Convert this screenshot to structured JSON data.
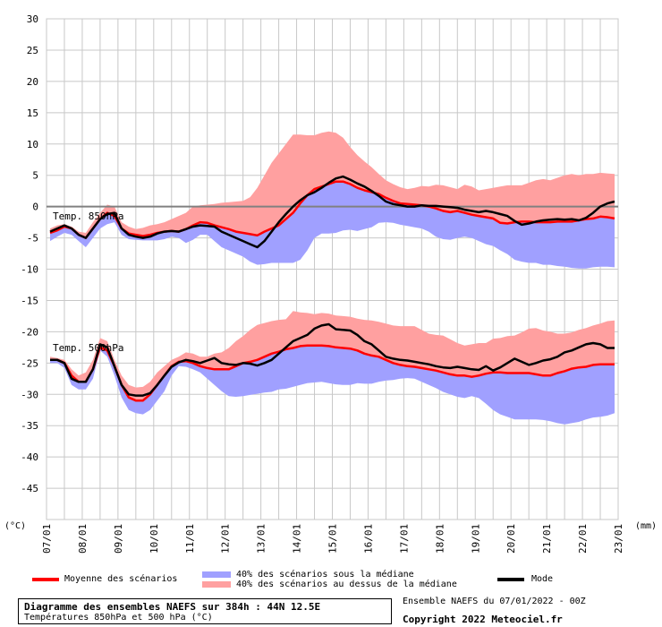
{
  "chart_data": {
    "type": "area",
    "y_unit_label": "(°C)",
    "y2_unit_label": "(mm)",
    "ylim": [
      -50,
      30
    ],
    "y_ticks": [
      30,
      25,
      20,
      15,
      10,
      5,
      0,
      -5,
      -10,
      -15,
      -20,
      -25,
      -30,
      -35,
      -40,
      -45
    ],
    "grid": true,
    "x_tick_labels": [
      "07/01",
      "08/01",
      "09/01",
      "10/01",
      "11/01",
      "12/01",
      "13/01",
      "14/01",
      "15/01",
      "16/01",
      "17/01",
      "18/01",
      "19/01",
      "20/01",
      "21/01",
      "22/01",
      "23/01"
    ],
    "x_day_range": [
      0,
      16
    ],
    "panels": [
      {
        "label": "Temp. 850hPa",
        "x": [
          0.1,
          0.3,
          0.5,
          0.7,
          0.9,
          1.1,
          1.3,
          1.5,
          1.7,
          1.9,
          2.1,
          2.3,
          2.5,
          2.7,
          2.9,
          3.1,
          3.3,
          3.5,
          3.7,
          3.9,
          4.1,
          4.3,
          4.5,
          4.7,
          4.9,
          5.1,
          5.3,
          5.5,
          5.7,
          5.9,
          6.1,
          6.3,
          6.5,
          6.7,
          6.9,
          7.1,
          7.3,
          7.5,
          7.7,
          7.9,
          8.1,
          8.3,
          8.5,
          8.7,
          8.9,
          9.1,
          9.3,
          9.5,
          9.7,
          9.9,
          10.1,
          10.3,
          10.5,
          10.7,
          10.9,
          11.1,
          11.3,
          11.5,
          11.7,
          11.9,
          12.1,
          12.3,
          12.5,
          12.7,
          12.9,
          13.1,
          13.3,
          13.5,
          13.7,
          13.9,
          14.1,
          14.3,
          14.5,
          14.7,
          14.9,
          15.1,
          15.3,
          15.5,
          15.7,
          15.9
        ],
        "mean": [
          -4.2,
          -3.8,
          -3.2,
          -3.5,
          -4.5,
          -5.0,
          -3.5,
          -2.0,
          -1.0,
          -1.5,
          -3.5,
          -4.3,
          -4.5,
          -4.7,
          -4.5,
          -4.2,
          -4.0,
          -3.9,
          -4.0,
          -3.6,
          -3.0,
          -2.5,
          -2.6,
          -3.0,
          -3.3,
          -3.6,
          -4.0,
          -4.2,
          -4.4,
          -4.6,
          -4.0,
          -3.5,
          -3.0,
          -2.0,
          -1.0,
          0.5,
          1.8,
          2.8,
          3.2,
          3.6,
          4.0,
          4.0,
          3.6,
          3.0,
          2.6,
          2.3,
          2.0,
          1.4,
          0.9,
          0.5,
          0.4,
          0.3,
          0.2,
          0.0,
          -0.3,
          -0.7,
          -0.9,
          -0.7,
          -1.0,
          -1.3,
          -1.5,
          -1.7,
          -1.9,
          -2.6,
          -2.7,
          -2.5,
          -2.4,
          -2.4,
          -2.5,
          -2.5,
          -2.5,
          -2.4,
          -2.4,
          -2.4,
          -2.2,
          -2.0,
          -1.9,
          -1.6,
          -1.7,
          -1.9
        ],
        "mode": [
          -4.0,
          -3.5,
          -3.0,
          -3.5,
          -4.5,
          -5.0,
          -3.5,
          -2.0,
          -1.2,
          -1.0,
          -3.5,
          -4.5,
          -4.8,
          -5.0,
          -4.8,
          -4.3,
          -4.0,
          -3.9,
          -4.0,
          -3.6,
          -3.2,
          -3.0,
          -3.1,
          -3.2,
          -4.0,
          -4.5,
          -5.0,
          -5.5,
          -6.0,
          -6.5,
          -5.5,
          -4.0,
          -2.5,
          -1.2,
          0.0,
          1.0,
          1.8,
          2.3,
          3.0,
          3.8,
          4.5,
          4.8,
          4.3,
          3.7,
          3.2,
          2.5,
          1.7,
          0.8,
          0.4,
          0.2,
          0.0,
          0.0,
          0.2,
          0.1,
          0.1,
          0.0,
          -0.1,
          -0.2,
          -0.5,
          -0.7,
          -0.9,
          -0.7,
          -0.9,
          -1.2,
          -1.5,
          -2.3,
          -2.9,
          -2.7,
          -2.4,
          -2.2,
          -2.1,
          -2.0,
          -2.1,
          -2.0,
          -2.2,
          -1.8,
          -1.0,
          0.0,
          0.5,
          0.8
        ],
        "upper": [
          -3.5,
          -3.0,
          -2.8,
          -3.2,
          -4.0,
          -4.2,
          -2.5,
          -1.0,
          0.3,
          0.0,
          -2.5,
          -3.2,
          -3.6,
          -3.4,
          -3.0,
          -2.8,
          -2.5,
          -2.0,
          -1.5,
          -1.0,
          0.0,
          0.2,
          0.3,
          0.4,
          0.6,
          0.7,
          0.8,
          0.9,
          1.5,
          3.0,
          5.0,
          7.0,
          8.5,
          10.0,
          11.5,
          11.5,
          11.4,
          11.4,
          11.8,
          12.0,
          11.8,
          11.0,
          9.5,
          8.2,
          7.2,
          6.3,
          5.2,
          4.2,
          3.6,
          3.1,
          2.8,
          3.0,
          3.3,
          3.2,
          3.5,
          3.4,
          3.1,
          2.8,
          3.5,
          3.2,
          2.6,
          2.8,
          3.0,
          3.2,
          3.4,
          3.4,
          3.4,
          3.8,
          4.2,
          4.4,
          4.2,
          4.6,
          5.0,
          5.2,
          5.0,
          5.2,
          5.2,
          5.4,
          5.3,
          5.2
        ],
        "lower": [
          -5.5,
          -4.8,
          -4.2,
          -4.5,
          -5.5,
          -6.5,
          -5.0,
          -3.5,
          -2.8,
          -2.5,
          -4.5,
          -5.2,
          -5.3,
          -5.4,
          -5.4,
          -5.4,
          -5.2,
          -4.8,
          -5.0,
          -5.8,
          -5.3,
          -4.5,
          -4.5,
          -5.5,
          -6.5,
          -7.0,
          -7.5,
          -8.0,
          -8.8,
          -9.3,
          -9.2,
          -9.0,
          -9.0,
          -9.0,
          -9.0,
          -8.5,
          -7.0,
          -5.0,
          -4.3,
          -4.3,
          -4.2,
          -3.8,
          -3.7,
          -3.9,
          -3.6,
          -3.3,
          -2.6,
          -2.5,
          -2.6,
          -2.9,
          -3.1,
          -3.3,
          -3.5,
          -4.0,
          -4.8,
          -5.2,
          -5.3,
          -5.0,
          -4.8,
          -5.0,
          -5.5,
          -6.0,
          -6.3,
          -7.0,
          -7.6,
          -8.5,
          -8.8,
          -9.0,
          -9.0,
          -9.3,
          -9.3,
          -9.5,
          -9.6,
          -9.8,
          -9.9,
          -9.9,
          -9.7,
          -9.6,
          -9.6,
          -9.7
        ]
      },
      {
        "label": "Temp. 500hPa",
        "x": [
          0.1,
          0.3,
          0.5,
          0.7,
          0.9,
          1.1,
          1.3,
          1.5,
          1.7,
          1.9,
          2.1,
          2.3,
          2.5,
          2.7,
          2.9,
          3.1,
          3.3,
          3.5,
          3.7,
          3.9,
          4.1,
          4.3,
          4.5,
          4.7,
          4.9,
          5.1,
          5.3,
          5.5,
          5.7,
          5.9,
          6.1,
          6.3,
          6.5,
          6.7,
          6.9,
          7.1,
          7.3,
          7.5,
          7.7,
          7.9,
          8.1,
          8.3,
          8.5,
          8.7,
          8.9,
          9.1,
          9.3,
          9.5,
          9.7,
          9.9,
          10.1,
          10.3,
          10.5,
          10.7,
          10.9,
          11.1,
          11.3,
          11.5,
          11.7,
          11.9,
          12.1,
          12.3,
          12.5,
          12.7,
          12.9,
          13.1,
          13.3,
          13.5,
          13.7,
          13.9,
          14.1,
          14.3,
          14.5,
          14.7,
          14.9,
          15.1,
          15.3,
          15.5,
          15.7,
          15.9
        ],
        "mean": [
          -24.5,
          -24.5,
          -25.0,
          -27.0,
          -28.0,
          -28.0,
          -26.0,
          -22.5,
          -23.0,
          -25.5,
          -28.5,
          -30.5,
          -31.0,
          -31.0,
          -30.0,
          -28.5,
          -27.0,
          -25.5,
          -24.8,
          -24.7,
          -25.0,
          -25.5,
          -25.8,
          -26.0,
          -26.0,
          -26.0,
          -25.5,
          -25.0,
          -24.8,
          -24.5,
          -24.0,
          -23.5,
          -23.2,
          -22.8,
          -22.6,
          -22.3,
          -22.2,
          -22.2,
          -22.2,
          -22.3,
          -22.5,
          -22.6,
          -22.7,
          -23.0,
          -23.5,
          -23.8,
          -24.0,
          -24.5,
          -25.0,
          -25.3,
          -25.5,
          -25.6,
          -25.8,
          -26.0,
          -26.2,
          -26.5,
          -26.8,
          -27.0,
          -27.0,
          -27.2,
          -27.0,
          -26.7,
          -26.5,
          -26.5,
          -26.6,
          -26.6,
          -26.6,
          -26.6,
          -26.8,
          -27.0,
          -27.0,
          -26.6,
          -26.3,
          -25.9,
          -25.7,
          -25.6,
          -25.3,
          -25.2,
          -25.2,
          -25.2
        ],
        "mode": [
          -24.5,
          -24.5,
          -25.0,
          -27.5,
          -28.0,
          -28.0,
          -26.0,
          -22.0,
          -22.5,
          -25.5,
          -28.5,
          -30.0,
          -30.2,
          -30.2,
          -29.8,
          -28.5,
          -27.0,
          -25.6,
          -24.9,
          -24.5,
          -24.7,
          -25.0,
          -24.6,
          -24.2,
          -25.0,
          -25.2,
          -25.3,
          -25.0,
          -25.1,
          -25.4,
          -25.0,
          -24.5,
          -23.5,
          -22.5,
          -21.5,
          -21.0,
          -20.5,
          -19.5,
          -19.0,
          -18.8,
          -19.6,
          -19.7,
          -19.8,
          -20.5,
          -21.5,
          -22.0,
          -23.0,
          -24.0,
          -24.3,
          -24.5,
          -24.6,
          -24.8,
          -25.0,
          -25.2,
          -25.5,
          -25.7,
          -25.8,
          -25.6,
          -25.8,
          -26.0,
          -26.1,
          -25.5,
          -26.2,
          -25.7,
          -25.0,
          -24.3,
          -24.8,
          -25.3,
          -25.0,
          -24.6,
          -24.4,
          -24.0,
          -23.3,
          -23.0,
          -22.5,
          -22.0,
          -21.8,
          -22.0,
          -22.6,
          -22.6
        ],
        "upper": [
          -24.0,
          -24.2,
          -24.5,
          -26.0,
          -27.0,
          -26.5,
          -24.5,
          -21.0,
          -21.5,
          -24.5,
          -27.0,
          -28.5,
          -28.9,
          -28.8,
          -28.0,
          -26.5,
          -25.5,
          -24.5,
          -24.0,
          -23.3,
          -23.5,
          -24.0,
          -24.0,
          -23.5,
          -23.3,
          -22.6,
          -21.5,
          -20.7,
          -19.7,
          -18.9,
          -18.6,
          -18.3,
          -18.1,
          -18.0,
          -16.7,
          -16.9,
          -17.0,
          -17.2,
          -17.0,
          -17.1,
          -17.4,
          -17.5,
          -17.6,
          -17.9,
          -18.1,
          -18.2,
          -18.4,
          -18.7,
          -19.0,
          -19.1,
          -19.1,
          -19.1,
          -19.7,
          -20.3,
          -20.5,
          -20.6,
          -21.2,
          -21.8,
          -22.2,
          -22.0,
          -21.8,
          -21.8,
          -21.1,
          -21.0,
          -20.7,
          -20.6,
          -20.1,
          -19.5,
          -19.4,
          -19.8,
          -20.0,
          -20.3,
          -20.3,
          -20.1,
          -19.7,
          -19.4,
          -19.0,
          -18.7,
          -18.3,
          -18.2
        ],
        "lower": [
          -25.0,
          -25.0,
          -25.8,
          -28.5,
          -29.2,
          -29.2,
          -27.5,
          -23.0,
          -24.0,
          -27.0,
          -30.5,
          -32.5,
          -33.0,
          -33.2,
          -32.5,
          -31.0,
          -29.5,
          -27.0,
          -25.5,
          -25.6,
          -26.0,
          -26.5,
          -27.5,
          -28.5,
          -29.5,
          -30.3,
          -30.4,
          -30.3,
          -30.1,
          -29.9,
          -29.7,
          -29.6,
          -29.2,
          -29.1,
          -28.8,
          -28.5,
          -28.2,
          -28.1,
          -28.0,
          -28.2,
          -28.4,
          -28.5,
          -28.5,
          -28.2,
          -28.3,
          -28.3,
          -28.0,
          -27.8,
          -27.7,
          -27.5,
          -27.4,
          -27.5,
          -28.0,
          -28.5,
          -29.0,
          -29.6,
          -30.0,
          -30.4,
          -30.6,
          -30.3,
          -30.6,
          -31.5,
          -32.5,
          -33.2,
          -33.6,
          -34.0,
          -34.0,
          -34.0,
          -34.0,
          -34.1,
          -34.3,
          -34.6,
          -34.8,
          -34.6,
          -34.4,
          -34.0,
          -33.7,
          -33.6,
          -33.4,
          -33.0
        ]
      }
    ],
    "legend": [
      {
        "name": "Moyenne des scénarios",
        "color": "#ff0000"
      },
      {
        "name": "40% des scénarios sous la médiane",
        "color": "#a0a0ff"
      },
      {
        "name": "40% des scénarios au dessus de la médiane",
        "color": "#ffa0a0"
      },
      {
        "name": "Mode",
        "color": "#000000"
      }
    ],
    "colors": {
      "mean": "#ff0000",
      "mode": "#000000",
      "lower": "#a0a0ff",
      "upper": "#ffa0a0",
      "grid": "#c8c8c8",
      "zero_line": "#808080"
    }
  },
  "footer": {
    "title": "Diagramme des ensembles NAEFS sur 384h : 44N 12.5E",
    "subtitle": "Températures 850hPa et 500 hPa (°C)",
    "run": "Ensemble NAEFS du 07/01/2022 - 00Z",
    "copyright": "Copyright 2022 Meteociel.fr"
  }
}
